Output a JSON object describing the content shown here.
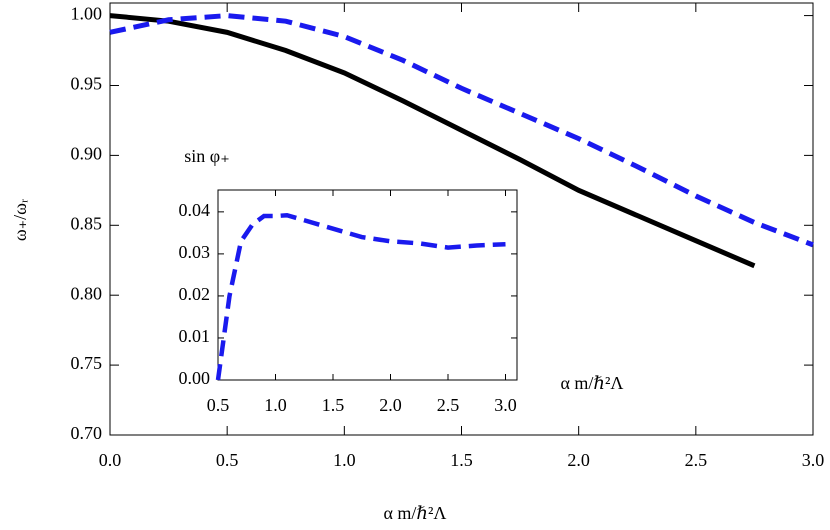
{
  "chart_data": [
    {
      "type": "line",
      "xlabel": "α m/ℏ²Λ",
      "ylabel": "ω₊/ωᵣ",
      "x": [
        0,
        0.25,
        0.5,
        0.75,
        1.0,
        1.25,
        1.5,
        1.75,
        2.0,
        2.25,
        2.5,
        2.75,
        3.0
      ],
      "series": [
        {
          "color": "#000000",
          "style": "solid",
          "values": [
            1.0,
            0.996,
            0.988,
            0.975,
            0.959,
            0.939,
            0.918,
            0.897,
            0.875,
            0.857,
            0.839,
            0.821,
            null
          ]
        },
        {
          "color": "#1a1aee",
          "style": "dashed",
          "values": [
            0.988,
            0.997,
            1.0,
            0.996,
            0.985,
            0.968,
            0.948,
            0.93,
            0.912,
            0.892,
            0.871,
            0.852,
            0.836
          ]
        }
      ],
      "xlim": [
        0,
        3.0
      ],
      "ylim": [
        0.7,
        1.009
      ],
      "xticks": [
        {
          "value": 0,
          "label": "0.0"
        },
        {
          "value": 0.5,
          "label": "0.5"
        },
        {
          "value": 1.0,
          "label": "1.0"
        },
        {
          "value": 1.5,
          "label": "1.5"
        },
        {
          "value": 2.0,
          "label": "2.0"
        },
        {
          "value": 2.5,
          "label": "2.5"
        },
        {
          "value": 3.0,
          "label": "3.0"
        }
      ],
      "yticks": [
        {
          "value": 0.7,
          "label": "0.70"
        },
        {
          "value": 0.75,
          "label": "0.75"
        },
        {
          "value": 0.8,
          "label": "0.80"
        },
        {
          "value": 0.85,
          "label": "0.85"
        },
        {
          "value": 0.9,
          "label": "0.90"
        },
        {
          "value": 0.95,
          "label": "0.95"
        },
        {
          "value": 1.0,
          "label": "1.00"
        }
      ]
    },
    {
      "type": "line",
      "xlabel": "α m/ℏ²Λ",
      "ylabel": "sin φ₊",
      "x": [
        0.5,
        0.55,
        0.6,
        0.7,
        0.8,
        0.9,
        1.0,
        1.1,
        1.25,
        1.5,
        1.75,
        2.0,
        2.25,
        2.5,
        2.75,
        3.0
      ],
      "series": [
        {
          "color": "#1a1aee",
          "style": "dashed",
          "values": [
            0,
            0.01,
            0.02,
            0.033,
            0.037,
            0.039,
            0.039,
            0.0392,
            0.038,
            0.036,
            0.034,
            0.033,
            0.0325,
            0.0315,
            0.032,
            0.0323
          ]
        }
      ],
      "xlim": [
        0.5,
        3.1
      ],
      "ylim": [
        0,
        0.0452
      ],
      "xticks": [
        {
          "value": 0.5,
          "label": "0.5"
        },
        {
          "value": 1.0,
          "label": "1.0"
        },
        {
          "value": 1.5,
          "label": "1.5"
        },
        {
          "value": 2.0,
          "label": "2.0"
        },
        {
          "value": 2.5,
          "label": "2.5"
        },
        {
          "value": 3.0,
          "label": "3.0"
        }
      ],
      "yticks": [
        {
          "value": 0,
          "label": "0.00"
        },
        {
          "value": 0.01,
          "label": "0.01"
        },
        {
          "value": 0.02,
          "label": "0.02"
        },
        {
          "value": 0.03,
          "label": "0.03"
        },
        {
          "value": 0.04,
          "label": "0.04"
        }
      ]
    }
  ]
}
